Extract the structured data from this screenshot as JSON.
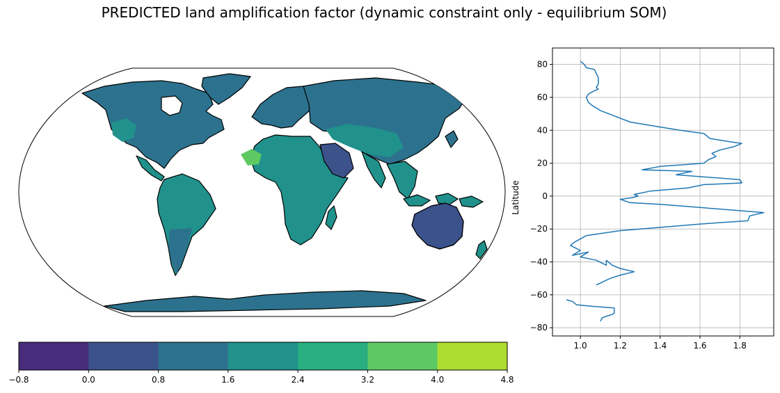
{
  "chart_data": [
    {
      "type": "heatmap",
      "title": "PREDICTED land amplification factor (dynamic constraint only - equilibrium SOM)",
      "projection": "robinson",
      "colorbar": {
        "levels": [
          -0.8,
          0.0,
          0.8,
          1.6,
          2.4,
          3.2,
          4.0,
          4.8
        ],
        "tick_labels": [
          "−0.8",
          "0.0",
          "0.8",
          "1.6",
          "2.4",
          "3.2",
          "4.0",
          "4.8"
        ],
        "colors": [
          "#472d7b",
          "#3b528b",
          "#2c728e",
          "#21918c",
          "#28ae80",
          "#5ec962",
          "#addc30",
          "#d2e21b"
        ],
        "orientation": "horizontal",
        "placement": "bottom"
      },
      "regions": [
        {
          "name": "North America",
          "level": 0.8
        },
        {
          "name": "US Great Plains",
          "level": 1.6
        },
        {
          "name": "Central America",
          "level": 1.6
        },
        {
          "name": "South America",
          "level": 0.8
        },
        {
          "name": "Amazon basin",
          "level": 1.6
        },
        {
          "name": "Patagonia",
          "level": 0.8
        },
        {
          "name": "Greenland",
          "level": 0.8
        },
        {
          "name": "Europe",
          "level": 0.8
        },
        {
          "name": "Northern Asia",
          "level": 0.8
        },
        {
          "name": "Central Asia",
          "level": 1.6
        },
        {
          "name": "Sahara",
          "level": 1.6
        },
        {
          "name": "Sahara hotspot",
          "level": 3.2
        },
        {
          "name": "Arabian Peninsula",
          "level": 0.0
        },
        {
          "name": "Southern Africa",
          "level": 1.6
        },
        {
          "name": "India and Southeast Asia",
          "level": 1.6
        },
        {
          "name": "Australia interior",
          "level": 0.0
        },
        {
          "name": "Antarctica",
          "level": 0.8
        }
      ]
    },
    {
      "type": "line",
      "xlabel": "",
      "ylabel": "Latitude",
      "xlim": [
        0.86,
        1.97
      ],
      "ylim": [
        -85,
        90
      ],
      "xticks": [
        1.0,
        1.2,
        1.4,
        1.6,
        1.8
      ],
      "xtick_labels": [
        "1.0",
        "1.2",
        "1.4",
        "1.6",
        "1.8"
      ],
      "yticks": [
        -80,
        -60,
        -40,
        -20,
        0,
        20,
        40,
        60,
        80
      ],
      "ytick_labels": [
        "−80",
        "−60",
        "−40",
        "−20",
        "0",
        "20",
        "40",
        "60",
        "80"
      ],
      "grid": true,
      "color": "#1f77b4",
      "segments": [
        {
          "x": [
            1.0,
            1.02,
            1.03,
            1.07,
            1.09,
            1.09,
            1.08,
            1.09,
            1.07,
            1.04,
            1.03,
            1.04,
            1.06,
            1.1,
            1.25,
            1.4,
            1.5,
            1.62,
            1.65,
            1.75,
            1.81,
            1.77,
            1.7,
            1.66,
            1.68,
            1.64,
            1.62,
            1.4,
            1.31,
            1.56,
            1.48,
            1.8,
            1.81,
            1.62,
            1.54,
            1.35,
            1.27,
            1.29,
            1.26,
            1.2,
            1.25,
            1.4,
            1.92,
            1.85,
            1.84,
            1.6,
            1.4,
            1.2,
            1.03,
            0.97,
            0.95,
            1.0,
            0.96,
            1.04,
            1.0,
            1.08,
            1.13,
            1.13,
            1.16,
            1.2,
            1.27,
            1.2,
            1.15,
            1.08
          ],
          "y": [
            82,
            80,
            78,
            77,
            72,
            68,
            66,
            65,
            64,
            62,
            60,
            57,
            55,
            52,
            45,
            42,
            40,
            38,
            35,
            33,
            32,
            30,
            28,
            26,
            24,
            22,
            20,
            18,
            16,
            15,
            13,
            10,
            8,
            7,
            5,
            3,
            1,
            0,
            -1,
            -2,
            -4,
            -5,
            -10,
            -12,
            -15,
            -17,
            -19,
            -21,
            -24,
            -28,
            -30,
            -33,
            -36,
            -34,
            -37,
            -39,
            -42,
            -39,
            -42,
            -44,
            -46,
            -48,
            -50,
            -54
          ]
        },
        {
          "x": [
            0.93,
            0.96,
            0.98,
            1.06,
            1.17,
            1.17,
            1.16,
            1.13,
            1.11,
            1.1
          ],
          "y": [
            -63,
            -64,
            -66,
            -67,
            -68,
            -71,
            -72,
            -73,
            -74,
            -76
          ]
        }
      ]
    }
  ]
}
